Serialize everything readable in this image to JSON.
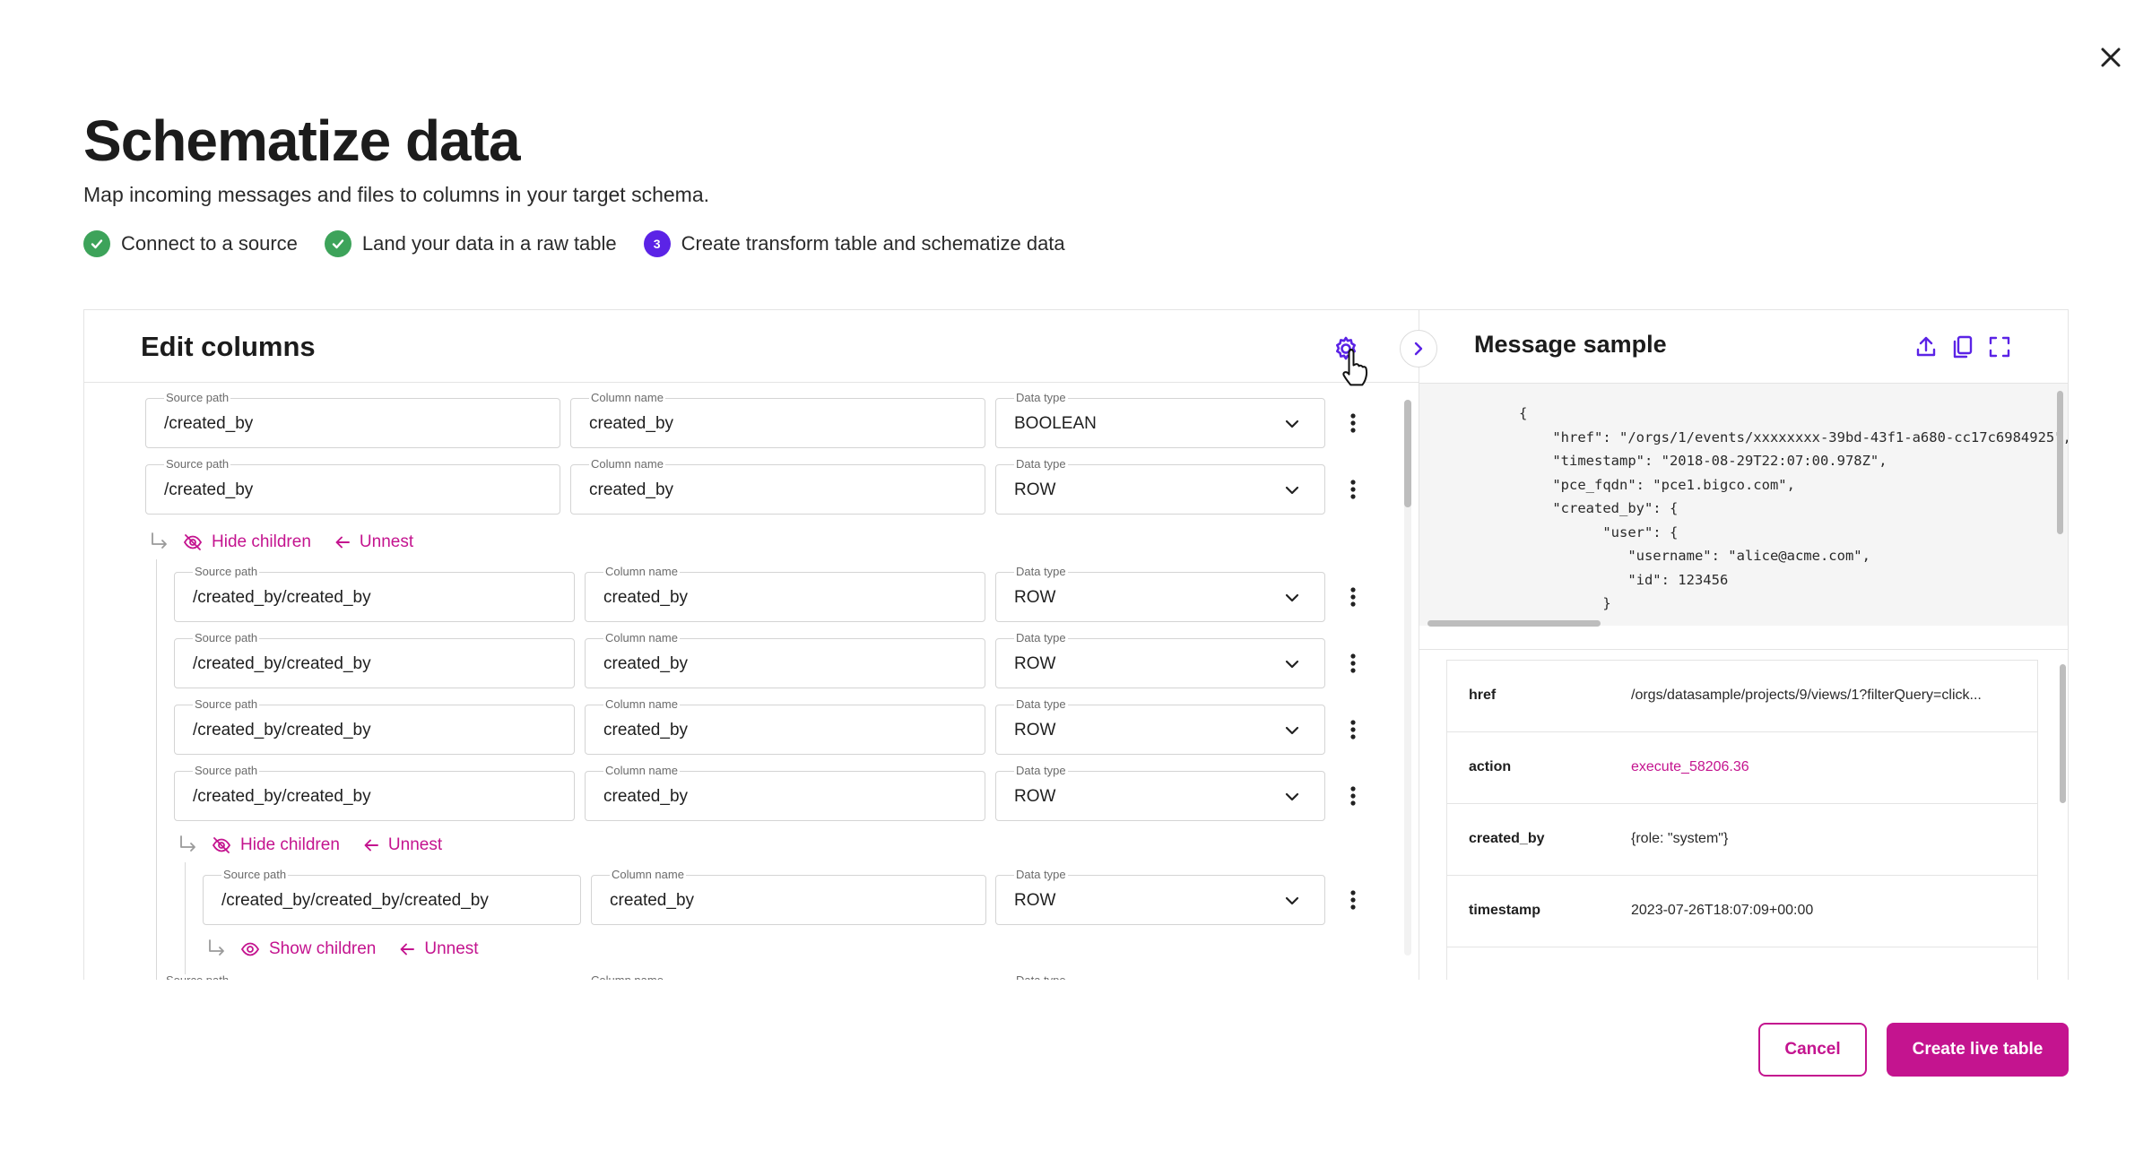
{
  "dialog": {
    "title": "Schematize data",
    "subtitle": "Map incoming messages and files to columns in your target schema."
  },
  "steps": [
    {
      "label": "Connect to a source",
      "status": "done"
    },
    {
      "label": "Land your data in a raw table",
      "status": "done"
    },
    {
      "label": "Create transform table and schematize data",
      "status": "current",
      "number": "3"
    }
  ],
  "edit_columns": {
    "title": "Edit columns",
    "labels": {
      "source_path": "Source path",
      "column_name": "Column name",
      "data_type": "Data type"
    },
    "rows": [
      {
        "source_path": "/created_by",
        "column_name": "created_by",
        "data_type": "BOOLEAN"
      },
      {
        "source_path": "/created_by",
        "column_name": "created_by",
        "data_type": "ROW"
      },
      {
        "source_path": "/created_by/created_by",
        "column_name": "created_by",
        "data_type": "ROW"
      },
      {
        "source_path": "/created_by/created_by",
        "column_name": "created_by",
        "data_type": "ROW"
      },
      {
        "source_path": "/created_by/created_by",
        "column_name": "created_by",
        "data_type": "ROW"
      },
      {
        "source_path": "/created_by/created_by",
        "column_name": "created_by",
        "data_type": "ROW"
      },
      {
        "source_path": "/created_by/created_by/created_by",
        "column_name": "created_by",
        "data_type": "ROW"
      }
    ],
    "actions": {
      "hide_children": "Hide children",
      "show_children": "Show children",
      "unnest": "Unnest"
    }
  },
  "message_sample": {
    "title": "Message sample",
    "json_lines": [
      "{",
      "    \"href\": \"/orgs/1/events/xxxxxxxx-39bd-43f1-a680-cc17c6984925\",",
      "    \"timestamp\": \"2018-08-29T22:07:00.978Z\",",
      "    \"pce_fqdn\": \"pce1.bigco.com\",",
      "    \"created_by\": {",
      "          \"user\": {",
      "             \"username\": \"alice@acme.com\",",
      "             \"id\": 123456",
      "          }"
    ],
    "fields": [
      {
        "key": "href",
        "value": "/orgs/datasample/projects/9/views/1?filterQuery=click..."
      },
      {
        "key": "action",
        "value": "execute_58206.36"
      },
      {
        "key": "created_by",
        "value": "{role: \"system\"}"
      },
      {
        "key": "timestamp",
        "value": "2023-07-26T18:07:09+00:00"
      }
    ]
  },
  "footer": {
    "cancel_label": "Cancel",
    "create_label": "Create live table"
  },
  "colors": {
    "accent": "#c4148f",
    "step_current": "#5b23e6",
    "step_done": "#3da35a"
  }
}
